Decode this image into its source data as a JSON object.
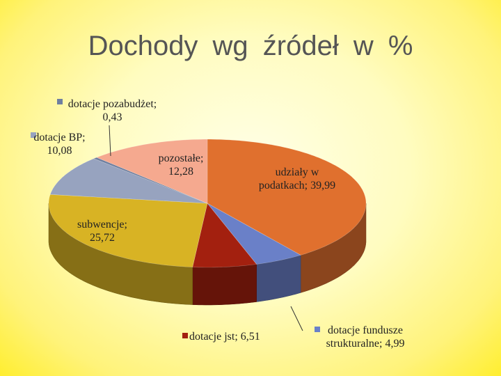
{
  "chart_data": {
    "type": "pie3d",
    "title": "Dochody wg źródeł w %",
    "categories": [
      "udziały w podatkach",
      "dotacje fundusze strukturalne",
      "dotacje jst",
      "subwencje",
      "dotacje BP",
      "dotacje pozabudżet",
      "pozostałe"
    ],
    "values": [
      39.99,
      4.99,
      6.51,
      25.72,
      10.08,
      0.43,
      12.28
    ],
    "value_labels": [
      "39,99",
      "4,99",
      "6,51",
      "25,72",
      "10,08",
      "0,43",
      "12,28"
    ],
    "label_separator": ";",
    "colors": [
      "#e0702e",
      "#6a80c8",
      "#a3200f",
      "#d8b324",
      "#97a3bf",
      "#6f7fa0",
      "#f5a98f"
    ]
  }
}
